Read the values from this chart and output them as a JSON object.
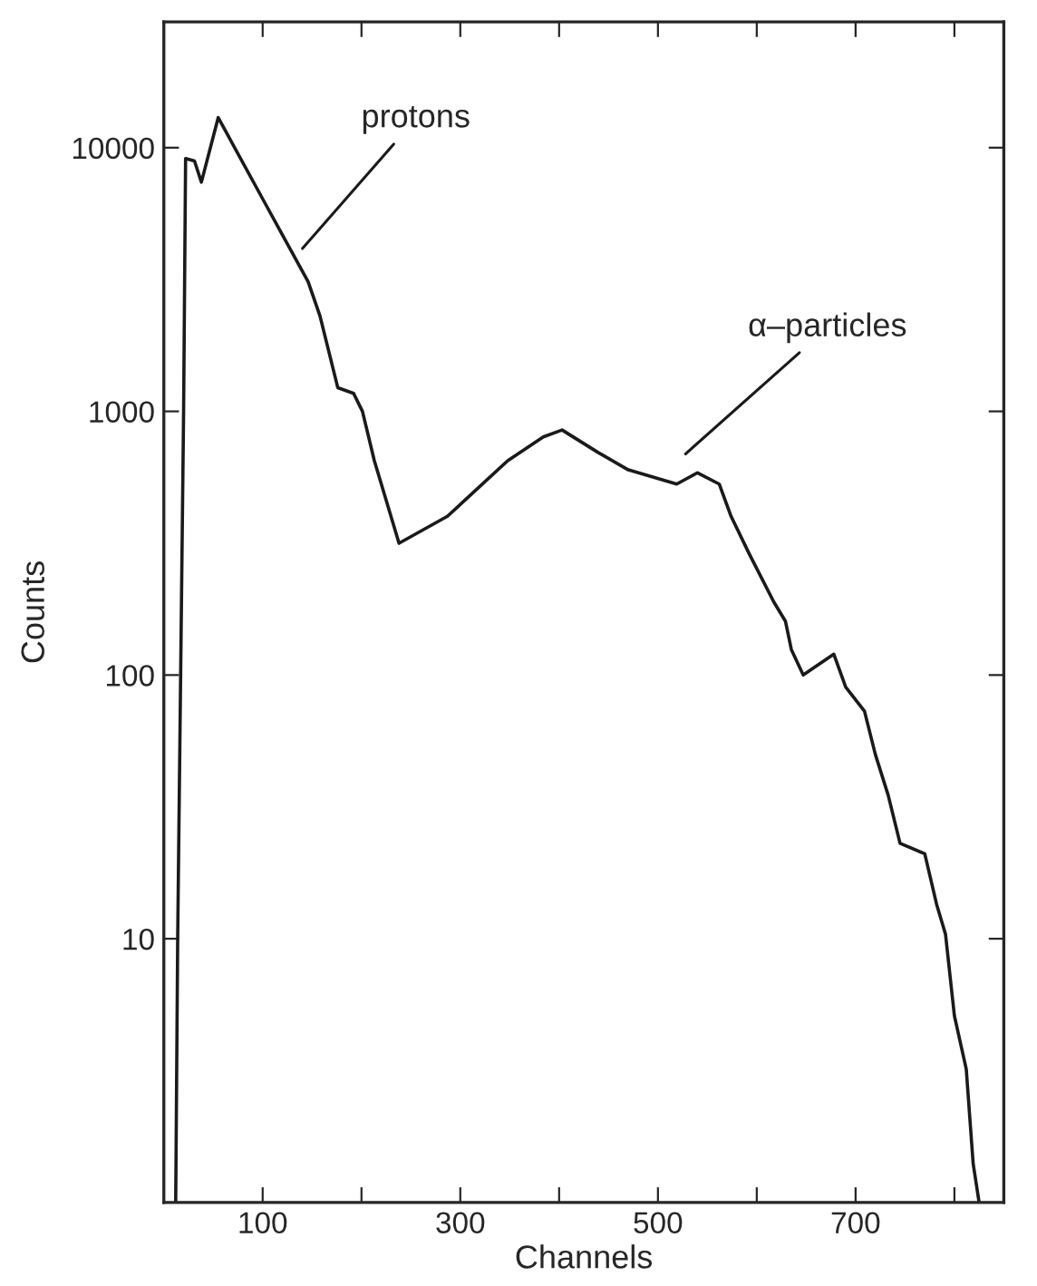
{
  "chart_data": {
    "type": "line",
    "xlabel": "Channels",
    "ylabel": "Counts",
    "log": "y",
    "xlim": [
      0,
      850
    ],
    "xticks": [
      100,
      {
        "value": 200,
        "label": null
      },
      300,
      {
        "value": 400,
        "label": null
      },
      500,
      {
        "value": 600,
        "label": null
      },
      700,
      {
        "value": 800,
        "label": null
      }
    ],
    "ylim": [
      1,
      30000
    ],
    "yticks": [
      10,
      100,
      1000,
      10000
    ],
    "grid": false,
    "series": [
      {
        "color": "#1a1a1a",
        "x": [
          12,
          14,
          17,
          20,
          22,
          31,
          38,
          55,
          103,
          146,
          158,
          176,
          192,
          201,
          213,
          238,
          287,
          348,
          384,
          403,
          439,
          470,
          519,
          540,
          562,
          574,
          592,
          617,
          629,
          635,
          647,
          678,
          690,
          709,
          720,
          733,
          745,
          770,
          782,
          791,
          800,
          812,
          819,
          825
        ],
        "values": [
          1,
          10,
          100,
          1000,
          9100,
          8900,
          7400,
          13000,
          6100,
          3100,
          2300,
          1230,
          1170,
          1000,
          650,
          316,
          400,
          650,
          800,
          850,
          700,
          600,
          530,
          585,
          530,
          400,
          290,
          190,
          160,
          125,
          100,
          120,
          90,
          73,
          50,
          35,
          23,
          21,
          13.5,
          10.4,
          5.1,
          3.2,
          1.4,
          1
        ]
      }
    ],
    "annotations": [
      "protons",
      "α–particles"
    ]
  }
}
